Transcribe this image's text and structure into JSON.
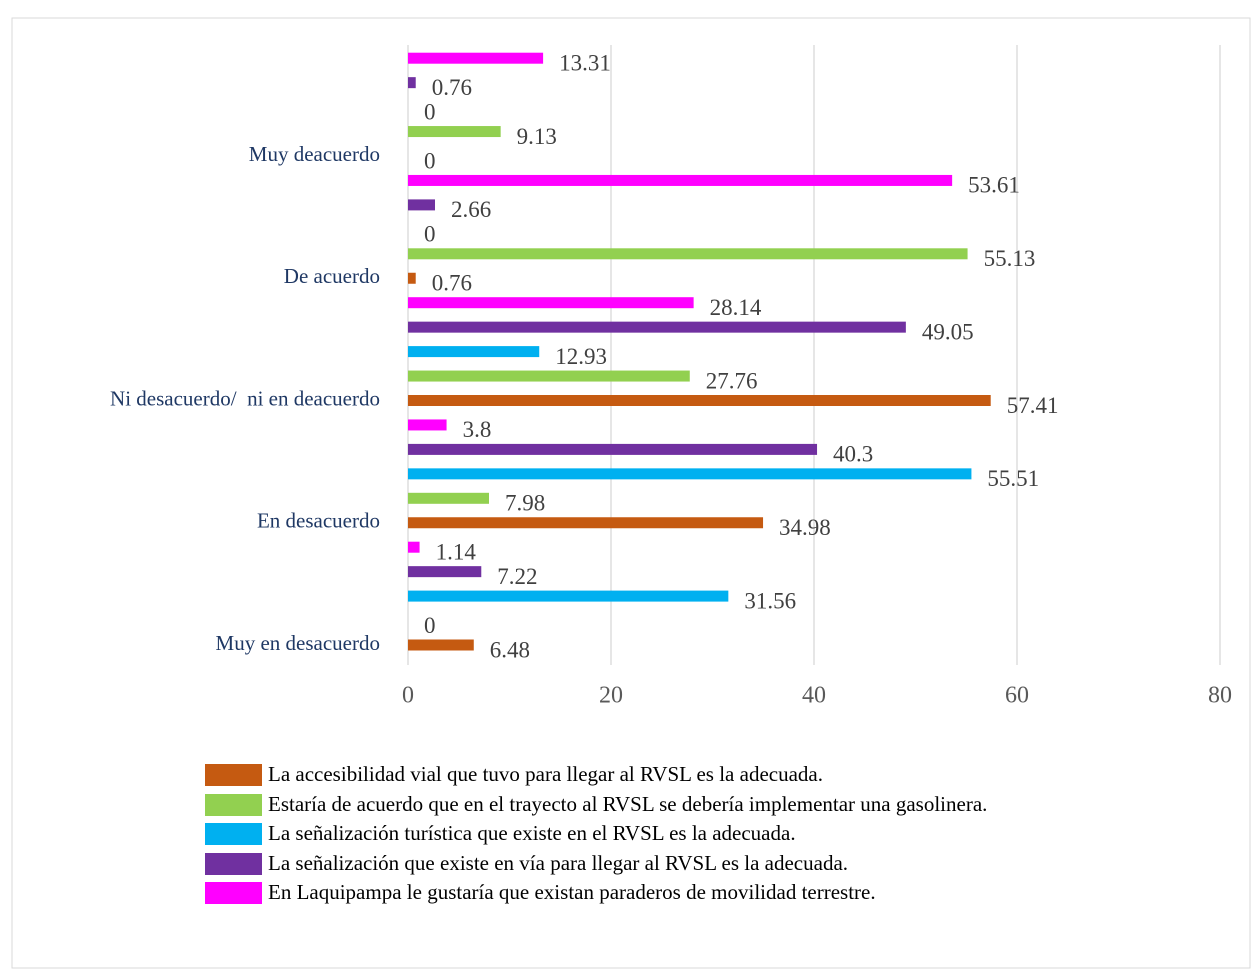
{
  "chart_data": {
    "type": "bar",
    "orientation": "horizontal",
    "categories": [
      "Muy en desacuerdo",
      "En desacuerdo",
      "Ni desacuerdo/  ni en deacuerdo",
      "De acuerdo",
      "Muy deacuerdo"
    ],
    "series": [
      {
        "name": "La accesibilidad vial que tuvo para llegar al RVSL es la adecuada.",
        "color": "#c55a11",
        "values": [
          6.48,
          34.98,
          57.41,
          0.76,
          0
        ]
      },
      {
        "name": "Estaría de acuerdo que en el trayecto al RVSL se debería implementar una gasolinera.",
        "color": "#92d050",
        "values": [
          0,
          7.98,
          27.76,
          55.13,
          9.13
        ]
      },
      {
        "name": "La señalización turística que existe en el RVSL es la adecuada.",
        "color": "#00b0f0",
        "values": [
          31.56,
          55.51,
          12.93,
          0,
          0
        ]
      },
      {
        "name": "La señalización que existe en vía para llegar al RVSL es la adecuada.",
        "color": "#7030a0",
        "values": [
          7.22,
          40.3,
          49.05,
          2.66,
          0.76
        ]
      },
      {
        "name": "En Laquipampa le gustaría que existan paraderos de movilidad terrestre.",
        "color": "#ff00ff",
        "values": [
          1.14,
          3.8,
          28.14,
          53.61,
          13.31
        ]
      }
    ],
    "xlim": [
      0,
      80
    ],
    "xticks": [
      0,
      20,
      40,
      60,
      80
    ],
    "grid": true,
    "legend": "bottom"
  }
}
